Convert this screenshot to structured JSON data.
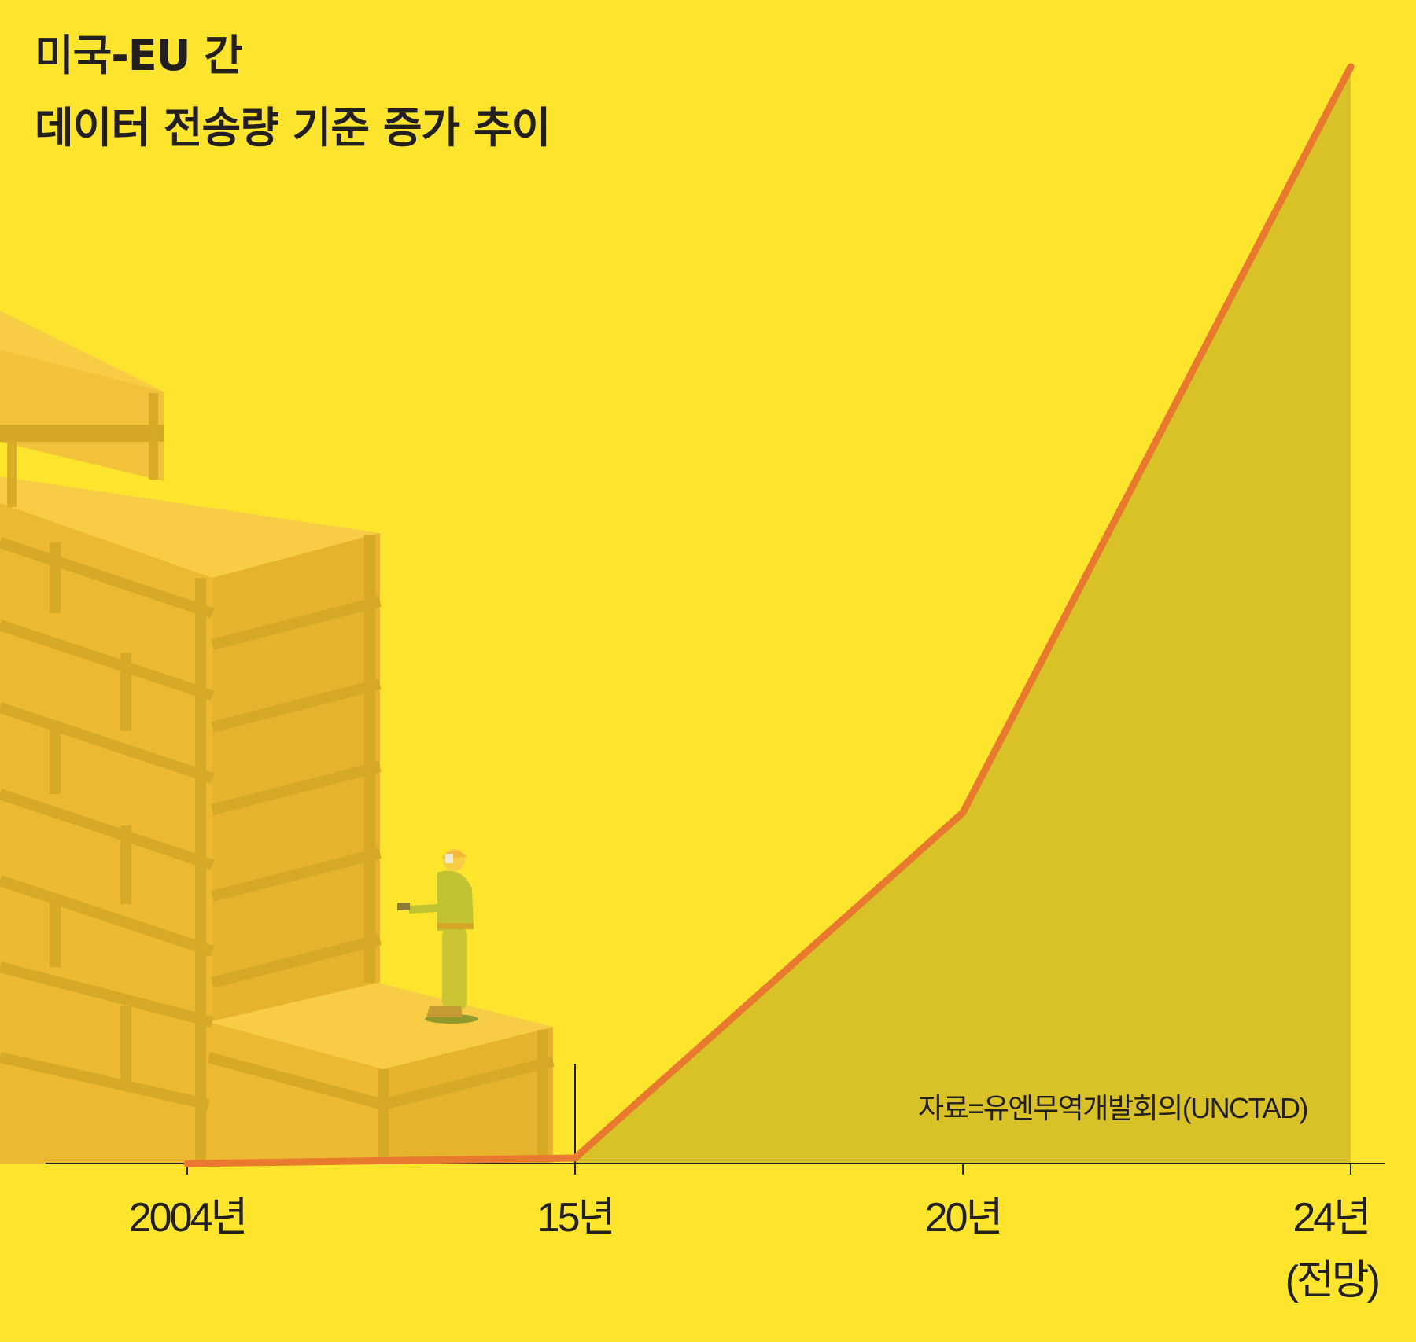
{
  "chart_data": {
    "type": "area",
    "title": [
      "미국-EU 간",
      "데이터 전송량 기준 증가 추이"
    ],
    "x": [
      "2004년",
      "15년",
      "20년",
      "24년"
    ],
    "x_sublabels": [
      "",
      "",
      "",
      "(전망)"
    ],
    "series": [
      {
        "values": [
          0,
          0.5,
          32,
          100
        ]
      }
    ],
    "ylim": [
      0,
      100
    ],
    "y_axis_visible": false,
    "grid": false,
    "legend": "none",
    "source": "자료=유엔무역개발회의(UNCTAD)",
    "colors": {
      "background": "#fde52e",
      "line": "#e8792e",
      "area": "#d8c227",
      "axis": "#231f20",
      "blocks_top": "#f8cd45",
      "blocks_face": "#edb930",
      "blocks_dark": "#d4a826"
    },
    "illustration": "stacked-gold-blocks-with-worker"
  }
}
